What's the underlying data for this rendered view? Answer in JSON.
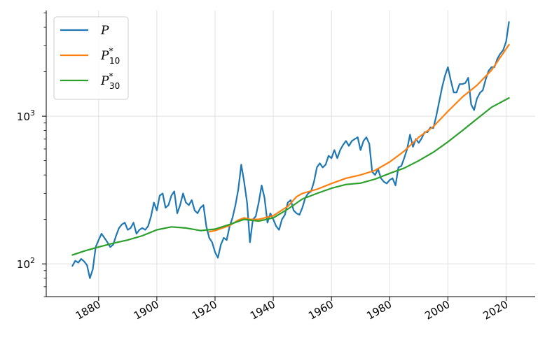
{
  "chart_data": {
    "type": "line",
    "title": "",
    "xlabel": "",
    "ylabel": "",
    "y_scale": "log",
    "xlim": [
      1862,
      2030
    ],
    "ylim": [
      60,
      5200
    ],
    "grid": true,
    "legend_position": "top-left",
    "x_ticks": [
      1880,
      1900,
      1920,
      1940,
      1960,
      1980,
      2000,
      2020
    ],
    "y_ticks": [
      {
        "value": 100,
        "base": "10",
        "exp": "2"
      },
      {
        "value": 1000,
        "base": "10",
        "exp": "3"
      }
    ],
    "series": [
      {
        "name": "P",
        "legend_main": "P",
        "legend_sup": "",
        "legend_sub": "",
        "color": "#1f77b4",
        "x": [
          1871,
          1872,
          1873,
          1874,
          1875,
          1876,
          1877,
          1878,
          1879,
          1880,
          1881,
          1882,
          1883,
          1884,
          1885,
          1886,
          1887,
          1888,
          1889,
          1890,
          1891,
          1892,
          1893,
          1894,
          1895,
          1896,
          1897,
          1898,
          1899,
          1900,
          1901,
          1902,
          1903,
          1904,
          1905,
          1906,
          1907,
          1908,
          1909,
          1910,
          1911,
          1912,
          1913,
          1914,
          1915,
          1916,
          1917,
          1918,
          1919,
          1920,
          1921,
          1922,
          1923,
          1924,
          1925,
          1926,
          1927,
          1928,
          1929,
          1930,
          1931,
          1932,
          1933,
          1934,
          1935,
          1936,
          1937,
          1938,
          1939,
          1940,
          1941,
          1942,
          1943,
          1944,
          1945,
          1946,
          1947,
          1948,
          1949,
          1950,
          1951,
          1952,
          1953,
          1954,
          1955,
          1956,
          1957,
          1958,
          1959,
          1960,
          1961,
          1962,
          1963,
          1964,
          1965,
          1966,
          1967,
          1968,
          1969,
          1970,
          1971,
          1972,
          1973,
          1974,
          1975,
          1976,
          1977,
          1978,
          1979,
          1980,
          1981,
          1982,
          1983,
          1984,
          1985,
          1986,
          1987,
          1988,
          1989,
          1990,
          1991,
          1992,
          1993,
          1994,
          1995,
          1996,
          1997,
          1998,
          1999,
          2000,
          2001,
          2002,
          2003,
          2004,
          2005,
          2006,
          2007,
          2008,
          2009,
          2010,
          2011,
          2012,
          2013,
          2014,
          2015,
          2016,
          2017,
          2018,
          2019,
          2020,
          2021
        ],
        "y": [
          97,
          105,
          102,
          108,
          104,
          98,
          80,
          92,
          130,
          145,
          160,
          150,
          140,
          130,
          135,
          155,
          175,
          185,
          190,
          170,
          175,
          190,
          160,
          170,
          175,
          170,
          180,
          210,
          260,
          230,
          290,
          300,
          240,
          250,
          290,
          310,
          220,
          250,
          300,
          260,
          250,
          270,
          230,
          220,
          240,
          250,
          180,
          150,
          140,
          120,
          110,
          135,
          150,
          145,
          180,
          205,
          250,
          320,
          470,
          360,
          260,
          140,
          200,
          210,
          260,
          340,
          280,
          190,
          220,
          200,
          180,
          170,
          200,
          215,
          260,
          270,
          230,
          220,
          215,
          240,
          280,
          300,
          310,
          360,
          450,
          480,
          450,
          470,
          540,
          520,
          590,
          520,
          590,
          640,
          680,
          630,
          680,
          700,
          720,
          590,
          680,
          720,
          650,
          420,
          400,
          440,
          380,
          360,
          350,
          370,
          380,
          340,
          450,
          460,
          520,
          600,
          750,
          620,
          700,
          660,
          710,
          780,
          780,
          840,
          830,
          1000,
          1250,
          1560,
          1880,
          2150,
          1750,
          1450,
          1450,
          1650,
          1650,
          1680,
          1820,
          1200,
          1100,
          1320,
          1440,
          1500,
          1780,
          2030,
          2150,
          2150,
          2450,
          2650,
          2800,
          3200,
          4350
        ]
      },
      {
        "name": "P*10",
        "legend_main": "P",
        "legend_sup": "*",
        "legend_sub": "10",
        "color": "#ff7f0e",
        "x": [
          1918,
          1920,
          1925,
          1928,
          1930,
          1932,
          1935,
          1940,
          1945,
          1948,
          1950,
          1955,
          1960,
          1965,
          1970,
          1975,
          1980,
          1985,
          1990,
          1995,
          2000,
          2005,
          2010,
          2015,
          2021
        ],
        "y": [
          165,
          168,
          182,
          198,
          205,
          200,
          200,
          212,
          245,
          285,
          300,
          320,
          350,
          380,
          400,
          430,
          490,
          580,
          720,
          850,
          1080,
          1350,
          1620,
          2050,
          3050
        ]
      },
      {
        "name": "P*30",
        "legend_main": "P",
        "legend_sup": "*",
        "legend_sub": "30",
        "color": "#2ca02c",
        "x": [
          1871,
          1875,
          1880,
          1885,
          1890,
          1895,
          1900,
          1905,
          1910,
          1915,
          1920,
          1925,
          1930,
          1935,
          1940,
          1945,
          1950,
          1955,
          1960,
          1965,
          1970,
          1975,
          1980,
          1985,
          1990,
          1995,
          2000,
          2005,
          2010,
          2015,
          2021
        ],
        "y": [
          115,
          122,
          130,
          138,
          145,
          155,
          170,
          178,
          175,
          168,
          172,
          185,
          200,
          195,
          205,
          235,
          275,
          300,
          325,
          345,
          352,
          375,
          410,
          445,
          500,
          570,
          670,
          800,
          960,
          1150,
          1330
        ]
      }
    ]
  }
}
